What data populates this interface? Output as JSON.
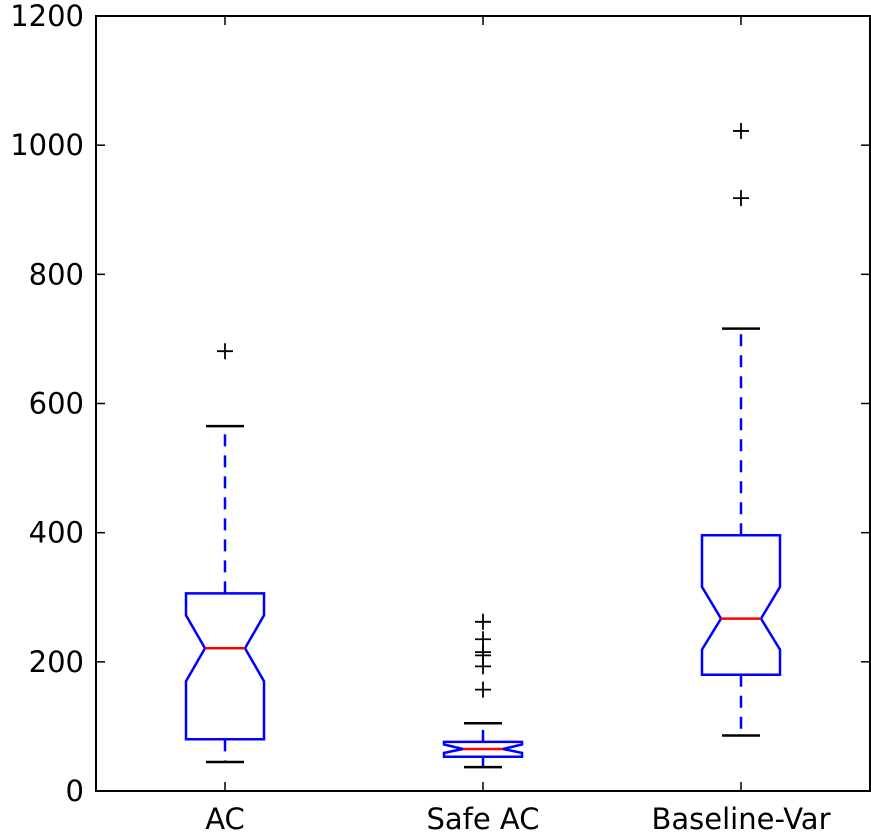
{
  "chart_data": {
    "type": "boxplot",
    "title": "",
    "xlabel": "",
    "ylabel": "",
    "ylim": [
      0,
      1200
    ],
    "yticks": [
      0,
      200,
      400,
      600,
      800,
      1000,
      1200
    ],
    "ytick_labels": [
      "0",
      "200",
      "400",
      "600",
      "800",
      "1000",
      "1200"
    ],
    "grid": false,
    "notched": true,
    "categories": [
      "AC",
      "Safe AC",
      "Baseline-Var"
    ],
    "boxes": [
      {
        "label": "AC",
        "whisker_low": 45,
        "q1": 80,
        "notch_low": 170,
        "median": 221,
        "notch_high": 272,
        "q3": 306,
        "whisker_high": 565,
        "outliers": [
          681
        ]
      },
      {
        "label": "Safe AC",
        "whisker_low": 37,
        "q1": 53,
        "notch_low": 59,
        "median": 65,
        "notch_high": 72,
        "q3": 76,
        "whisker_high": 105,
        "outliers": [
          157,
          193,
          210,
          215,
          235,
          262
        ]
      },
      {
        "label": "Baseline-Var",
        "whisker_low": 86,
        "q1": 180,
        "notch_low": 219,
        "median": 267,
        "notch_high": 316,
        "q3": 396,
        "whisker_high": 716,
        "outliers": [
          918,
          1022
        ]
      }
    ],
    "colors": {
      "box": "#0000ff",
      "median": "#ff0000",
      "whisker_dash": "#0000ff",
      "cap": "#000000",
      "flier": "#000000",
      "axes": "#000000"
    }
  }
}
